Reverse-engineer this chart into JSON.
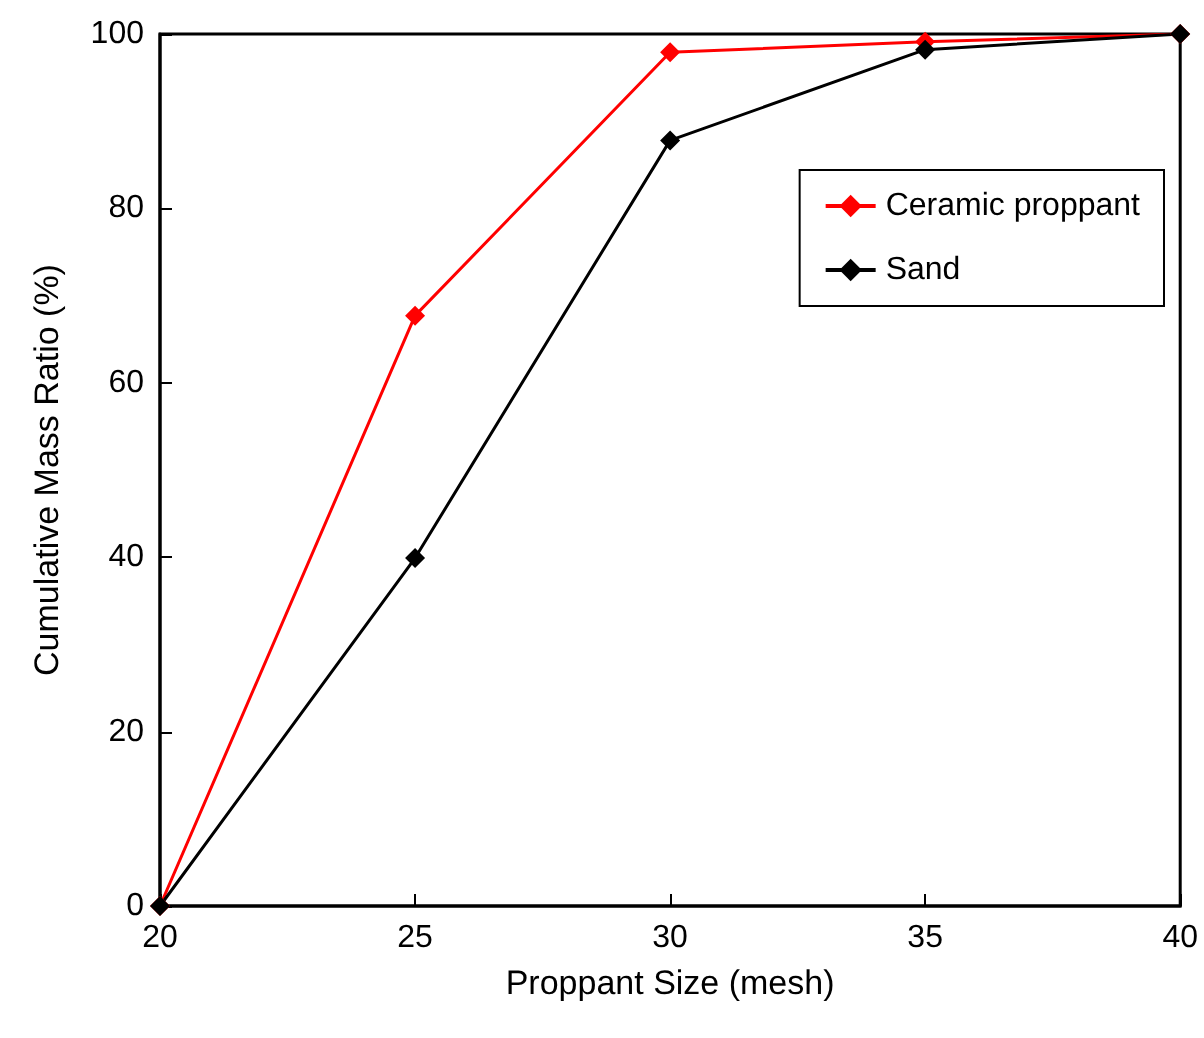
{
  "chart_data": {
    "type": "line",
    "xlabel": "Proppant Size (mesh)",
    "ylabel": "Cumulative Mass Ratio (%)",
    "x": [
      20,
      25,
      30,
      35,
      40
    ],
    "series": [
      {
        "name": "Ceramic proppant",
        "color": "#ff0000",
        "values": [
          0,
          67.7,
          97.9,
          99.1,
          100
        ]
      },
      {
        "name": "Sand",
        "color": "#000000",
        "values": [
          0,
          39.9,
          87.8,
          98.2,
          100
        ]
      }
    ],
    "xlim": [
      20,
      40
    ],
    "xticks": [
      20,
      25,
      30,
      35,
      40
    ],
    "ylim": [
      0,
      100
    ],
    "yticks": [
      0,
      20,
      40,
      60,
      80,
      100
    ],
    "grid": false,
    "legend": "right",
    "marker": "diamond",
    "line_style": "solid"
  }
}
